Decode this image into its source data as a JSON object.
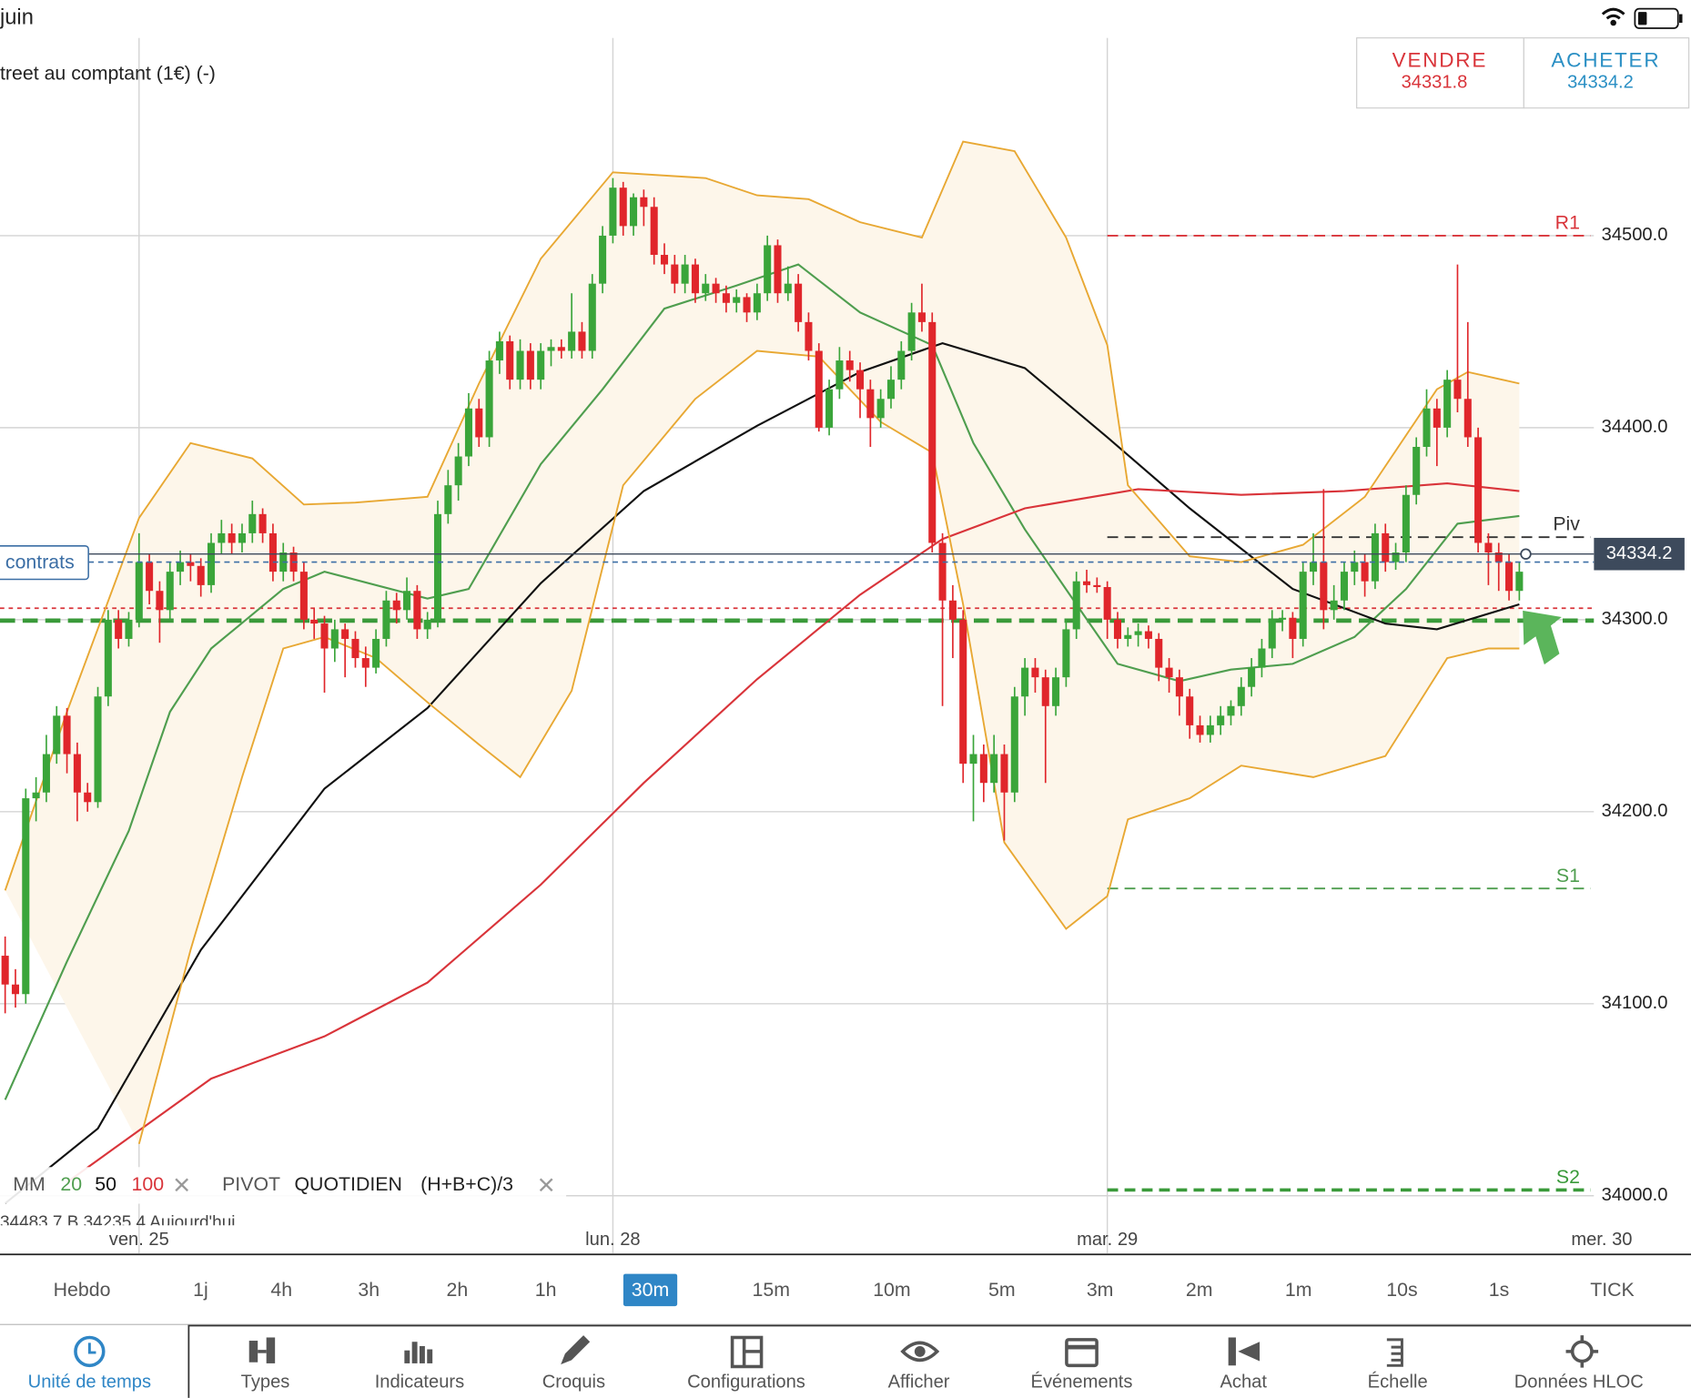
{
  "status": {
    "date": "juin"
  },
  "instrument": "treet au comptant (1€) (-)",
  "trade": {
    "sell_label": "VENDRE",
    "sell_price": "34331.8",
    "buy_label": "ACHETER",
    "buy_price": "34334.2"
  },
  "chart_data": {
    "type": "candlestick",
    "categories": [
      null,
      null,
      null,
      null,
      null,
      null,
      null,
      null,
      null,
      null,
      null,
      null,
      null,
      "ven. 25",
      null,
      null,
      null,
      null,
      null,
      null,
      null,
      null,
      null,
      null,
      null,
      null,
      null,
      null,
      null,
      null,
      null,
      null,
      null,
      null,
      null,
      null,
      null,
      null,
      null,
      null,
      null,
      null,
      null,
      null,
      null,
      null,
      null,
      null,
      null,
      null,
      null,
      null,
      null,
      null,
      null,
      null,
      null,
      null,
      null,
      "lun. 28",
      null,
      null,
      null,
      null,
      null,
      null,
      null,
      null,
      null,
      null,
      null,
      null,
      null,
      null,
      null,
      null,
      null,
      null,
      null,
      null,
      null,
      null,
      null,
      null,
      null,
      null,
      null,
      null,
      null,
      null,
      null,
      null,
      null,
      null,
      null,
      null,
      null,
      null,
      null,
      null,
      null,
      null,
      null,
      null,
      null,
      null,
      null,
      "mar. 29",
      null,
      null,
      null,
      null,
      null,
      null,
      null,
      null,
      null,
      null,
      null,
      null,
      null,
      null,
      null,
      null,
      null,
      null,
      null,
      null,
      null,
      null,
      null,
      null,
      null,
      null,
      null,
      null,
      null,
      null,
      null,
      null,
      null,
      null,
      null,
      null,
      null,
      null,
      null,
      null,
      null,
      null,
      null,
      null,
      null,
      null,
      null,
      "mer. 30"
    ],
    "candles": [
      [
        34125,
        34135,
        34095,
        34110
      ],
      [
        34110,
        34118,
        34098,
        34105
      ],
      [
        34105,
        34212,
        34100,
        34207
      ],
      [
        34207,
        34218,
        34195,
        34210
      ],
      [
        34210,
        34240,
        34205,
        34230
      ],
      [
        34230,
        34255,
        34225,
        34250
      ],
      [
        34250,
        34254,
        34220,
        34230
      ],
      [
        34230,
        34236,
        34195,
        34210
      ],
      [
        34210,
        34215,
        34200,
        34205
      ],
      [
        34205,
        34265,
        34202,
        34260
      ],
      [
        34260,
        34305,
        34255,
        34300
      ],
      [
        34300,
        34305,
        34285,
        34290
      ],
      [
        34290,
        34304,
        34286,
        34300
      ],
      [
        34300,
        34345,
        34296,
        34330
      ],
      [
        34330,
        34334,
        34308,
        34315
      ],
      [
        34315,
        34320,
        34288,
        34305
      ],
      [
        34305,
        34330,
        34300,
        34325
      ],
      [
        34325,
        34336,
        34318,
        34330
      ],
      [
        34330,
        34334,
        34320,
        34328
      ],
      [
        34328,
        34332,
        34312,
        34318
      ],
      [
        34318,
        34345,
        34314,
        34340
      ],
      [
        34340,
        34352,
        34334,
        34345
      ],
      [
        34345,
        34350,
        34334,
        34340
      ],
      [
        34340,
        34350,
        34335,
        34345
      ],
      [
        34345,
        34362,
        34340,
        34355
      ],
      [
        34355,
        34358,
        34340,
        34345
      ],
      [
        34345,
        34350,
        34320,
        34325
      ],
      [
        34325,
        34340,
        34320,
        34335
      ],
      [
        34335,
        34338,
        34320,
        34325
      ],
      [
        34325,
        34330,
        34295,
        34300
      ],
      [
        34300,
        34306,
        34290,
        34298
      ],
      [
        34298,
        34302,
        34262,
        34285
      ],
      [
        34285,
        34300,
        34278,
        34295
      ],
      [
        34295,
        34298,
        34270,
        34290
      ],
      [
        34290,
        34294,
        34275,
        34280
      ],
      [
        34280,
        34286,
        34265,
        34275
      ],
      [
        34275,
        34295,
        34272,
        34290
      ],
      [
        34290,
        34315,
        34286,
        34310
      ],
      [
        34310,
        34314,
        34298,
        34305
      ],
      [
        34305,
        34322,
        34300,
        34315
      ],
      [
        34315,
        34318,
        34290,
        34295
      ],
      [
        34295,
        34304,
        34290,
        34300
      ],
      [
        34300,
        34362,
        34296,
        34355
      ],
      [
        34355,
        34378,
        34350,
        34370
      ],
      [
        34370,
        34392,
        34362,
        34385
      ],
      [
        34385,
        34418,
        34380,
        34410
      ],
      [
        34410,
        34415,
        34390,
        34395
      ],
      [
        34395,
        34440,
        34390,
        34435
      ],
      [
        34435,
        34450,
        34428,
        34445
      ],
      [
        34445,
        34448,
        34420,
        34425
      ],
      [
        34425,
        34446,
        34420,
        34440
      ],
      [
        34440,
        34444,
        34420,
        34425
      ],
      [
        34425,
        34444,
        34420,
        34440
      ],
      [
        34440,
        34446,
        34432,
        34442
      ],
      [
        34442,
        34446,
        34436,
        34440
      ],
      [
        34440,
        34470,
        34436,
        34450
      ],
      [
        34450,
        34455,
        34436,
        34440
      ],
      [
        34440,
        34480,
        34436,
        34475
      ],
      [
        34475,
        34505,
        34470,
        34500
      ],
      [
        34500,
        34530,
        34496,
        34525
      ],
      [
        34525,
        34528,
        34500,
        34505
      ],
      [
        34505,
        34522,
        34500,
        34520
      ],
      [
        34520,
        34524,
        34505,
        34515
      ],
      [
        34515,
        34520,
        34485,
        34490
      ],
      [
        34490,
        34496,
        34480,
        34485
      ],
      [
        34485,
        34490,
        34470,
        34475
      ],
      [
        34475,
        34490,
        34470,
        34485
      ],
      [
        34485,
        34488,
        34465,
        34470
      ],
      [
        34470,
        34480,
        34466,
        34475
      ],
      [
        34475,
        34478,
        34465,
        34470
      ],
      [
        34470,
        34474,
        34460,
        34465
      ],
      [
        34465,
        34472,
        34460,
        34468
      ],
      [
        34468,
        34470,
        34455,
        34460
      ],
      [
        34460,
        34475,
        34456,
        34470
      ],
      [
        34470,
        34500,
        34466,
        34495
      ],
      [
        34495,
        34498,
        34465,
        34470
      ],
      [
        34470,
        34484,
        34466,
        34475
      ],
      [
        34475,
        34480,
        34450,
        34455
      ],
      [
        34455,
        34460,
        34435,
        34440
      ],
      [
        34440,
        34444,
        34398,
        34400
      ],
      [
        34400,
        34425,
        34396,
        34420
      ],
      [
        34420,
        34442,
        34415,
        34435
      ],
      [
        34435,
        34440,
        34424,
        34430
      ],
      [
        34430,
        34434,
        34405,
        34420
      ],
      [
        34420,
        34425,
        34390,
        34405
      ],
      [
        34405,
        34420,
        34400,
        34415
      ],
      [
        34415,
        34432,
        34410,
        34425
      ],
      [
        34425,
        34445,
        34420,
        34440
      ],
      [
        34440,
        34465,
        34435,
        34460
      ],
      [
        34460,
        34475,
        34450,
        34455
      ],
      [
        34455,
        34460,
        34335,
        34340
      ],
      [
        34340,
        34345,
        34255,
        34310
      ],
      [
        34310,
        34318,
        34280,
        34300
      ],
      [
        34300,
        34305,
        34215,
        34225
      ],
      [
        34225,
        34240,
        34195,
        34230
      ],
      [
        34230,
        34235,
        34205,
        34215
      ],
      [
        34215,
        34240,
        34210,
        34230
      ],
      [
        34230,
        34235,
        34185,
        34210
      ],
      [
        34210,
        34265,
        34205,
        34260
      ],
      [
        34260,
        34280,
        34250,
        34275
      ],
      [
        34275,
        34280,
        34262,
        34270
      ],
      [
        34270,
        34274,
        34215,
        34255
      ],
      [
        34255,
        34275,
        34250,
        34270
      ],
      [
        34270,
        34300,
        34265,
        34295
      ],
      [
        34295,
        34325,
        34290,
        34320
      ],
      [
        34320,
        34326,
        34314,
        34318
      ],
      [
        34318,
        34322,
        34314,
        34317
      ],
      [
        34317,
        34320,
        34290,
        34300
      ],
      [
        34300,
        34304,
        34285,
        34290
      ],
      [
        34290,
        34296,
        34286,
        34292
      ],
      [
        34292,
        34298,
        34286,
        34294
      ],
      [
        34294,
        34297,
        34285,
        34290
      ],
      [
        34290,
        34293,
        34268,
        34275
      ],
      [
        34275,
        34280,
        34262,
        34270
      ],
      [
        34270,
        34274,
        34250,
        34260
      ],
      [
        34260,
        34264,
        34238,
        34245
      ],
      [
        34245,
        34250,
        34236,
        34240
      ],
      [
        34240,
        34250,
        34236,
        34245
      ],
      [
        34245,
        34255,
        34240,
        34250
      ],
      [
        34250,
        34258,
        34245,
        34255
      ],
      [
        34255,
        34270,
        34250,
        34265
      ],
      [
        34265,
        34280,
        34260,
        34275
      ],
      [
        34275,
        34290,
        34270,
        34285
      ],
      [
        34285,
        34305,
        34280,
        34300
      ],
      [
        34300,
        34305,
        34294,
        34301
      ],
      [
        34301,
        34304,
        34280,
        34290
      ],
      [
        34290,
        34330,
        34286,
        34325
      ],
      [
        34325,
        34345,
        34318,
        34330
      ],
      [
        34330,
        34368,
        34295,
        34305
      ],
      [
        34305,
        34318,
        34300,
        34310
      ],
      [
        34310,
        34330,
        34305,
        34325
      ],
      [
        34325,
        34336,
        34318,
        34330
      ],
      [
        34330,
        34334,
        34312,
        34320
      ],
      [
        34320,
        34350,
        34316,
        34345
      ],
      [
        34345,
        34350,
        34325,
        34330
      ],
      [
        34330,
        34340,
        34326,
        34335
      ],
      [
        34335,
        34370,
        34330,
        34365
      ],
      [
        34365,
        34395,
        34360,
        34390
      ],
      [
        34390,
        34420,
        34385,
        34410
      ],
      [
        34410,
        34415,
        34380,
        34400
      ],
      [
        34400,
        34430,
        34395,
        34425
      ],
      [
        34425,
        34485,
        34408,
        34415
      ],
      [
        34415,
        34455,
        34390,
        34395
      ],
      [
        34395,
        34400,
        34335,
        34340
      ],
      [
        34340,
        34345,
        34318,
        34335
      ],
      [
        34335,
        34340,
        34315,
        34330
      ],
      [
        34330,
        34334,
        34310,
        34315
      ],
      [
        34315,
        34330,
        34310,
        34325
      ],
      null,
      null,
      null,
      null,
      null,
      null,
      null,
      null
    ],
    "up_color": "#3aa53a",
    "down_color": "#e0262b",
    "ylim": [
      33970,
      34603
    ],
    "yticks": [
      {
        "value": 34000,
        "label": "34000.0"
      },
      {
        "value": 34100,
        "label": "34100.0"
      },
      {
        "value": 34200,
        "label": "34200.0"
      },
      {
        "value": 34300,
        "label": "34300.0"
      },
      {
        "value": 34400,
        "label": "34400.0"
      },
      {
        "value": 34500,
        "label": "34500.0"
      }
    ],
    "grid": true,
    "ma_label": "MM",
    "series": [
      {
        "name": "20",
        "color": "#4f9e4f",
        "x": [
          0,
          6,
          12,
          16,
          20,
          27,
          31,
          41,
          45,
          52,
          58,
          64,
          71,
          77,
          83,
          90,
          94,
          99,
          104,
          108,
          114,
          119,
          125,
          131,
          136,
          141,
          147
        ],
        "values": [
          34050,
          34122,
          34190,
          34252,
          34285,
          34316,
          34325,
          34311,
          34316,
          34381,
          34420,
          34462,
          34474,
          34485,
          34460,
          34443,
          34392,
          34347,
          34308,
          34277,
          34268,
          34274,
          34277,
          34291,
          34316,
          34350,
          34354
        ]
      },
      {
        "name": "50",
        "color": "#111111",
        "x": [
          0,
          9,
          19,
          31,
          41,
          52,
          62,
          73,
          83,
          91,
          99,
          107,
          115,
          125,
          134,
          139,
          147
        ],
        "values": [
          33996,
          34035,
          34128,
          34212,
          34254,
          34319,
          34367,
          34401,
          34429,
          34444,
          34431,
          34395,
          34358,
          34316,
          34298,
          34295,
          34308
        ]
      },
      {
        "name": "100",
        "color": "#d9343a",
        "x": [
          6,
          20,
          31,
          41,
          52,
          62,
          73,
          83,
          91,
          99,
          110,
          120,
          130,
          140,
          147
        ],
        "values": [
          34007,
          34061,
          34083,
          34111,
          34162,
          34215,
          34269,
          34313,
          34342,
          34358,
          34368,
          34365,
          34367,
          34371,
          34367
        ]
      },
      {
        "color": "#e8a833",
        "band": "upper",
        "x": [
          0,
          6,
          13,
          18,
          24,
          29,
          34,
          41,
          46,
          52,
          59,
          68,
          73,
          78,
          83,
          89,
          93,
          98,
          103,
          107,
          109,
          115,
          120,
          126,
          132,
          139,
          142,
          147
        ],
        "values": [
          34159,
          34252,
          34353,
          34392,
          34384,
          34360,
          34361,
          34364,
          34423,
          34488,
          34533,
          34530,
          34521,
          34519,
          34507,
          34499,
          34549,
          34544,
          34499,
          34443,
          34370,
          34333,
          34330,
          34339,
          34364,
          34420,
          34429,
          34423
        ]
      },
      {
        "color": "#e8a833",
        "band": "lower",
        "x": [
          13,
          18,
          23,
          27,
          31,
          36,
          41,
          46,
          50,
          55,
          60,
          67,
          73,
          79,
          85,
          90,
          93,
          97,
          103,
          107,
          109,
          115,
          120,
          127,
          134,
          140,
          144,
          147
        ],
        "values": [
          34027,
          34128,
          34218,
          34285,
          34291,
          34280,
          34257,
          34235,
          34218,
          34263,
          34370,
          34415,
          34440,
          34437,
          34403,
          34387,
          34308,
          34184,
          34139,
          34156,
          34196,
          34207,
          34224,
          34218,
          34229,
          34280,
          34285,
          34285
        ]
      }
    ],
    "band_fill": "#fdf6ea",
    "pivot": {
      "label": "PIVOT",
      "period": "QUOTIDIEN",
      "formula": "(H+B+C)/3",
      "start": 107,
      "levels": [
        {
          "label": "R1",
          "value": 34500,
          "color": "#d9343a"
        },
        {
          "label": "Piv",
          "value": 34343,
          "color": "#333333"
        },
        {
          "label": "S1",
          "value": 34160,
          "color": "#4f9e4f"
        },
        {
          "label": "S2",
          "value": 34003,
          "color": "#3a9a3a"
        }
      ]
    },
    "price": 34334.2,
    "price_color": "#3d4a5c",
    "position": {
      "label": "contrats",
      "value": 34330,
      "color": "#3b6ea5"
    },
    "levels": [
      {
        "value": 34306,
        "color": "#d9343a"
      },
      {
        "value": 34299.5,
        "color": "#3a9a3a"
      }
    ],
    "info_row": "34483.7   B 34235.4   Aujourd'hui"
  },
  "timeframes": {
    "items": [
      "Hebdo",
      "1j",
      "4h",
      "3h",
      "2h",
      "1h",
      "30m",
      "15m",
      "10m",
      "5m",
      "3m",
      "2m",
      "1m",
      "10s",
      "1s",
      "TICK"
    ],
    "selected": 6
  },
  "toolbar": {
    "items": [
      "Unité de temps",
      "Types",
      "Indicateurs",
      "Croquis",
      "Configurations",
      "Afficher",
      "Événements",
      "Achat",
      "Échelle",
      "Données HLOC"
    ],
    "selected": 0
  }
}
